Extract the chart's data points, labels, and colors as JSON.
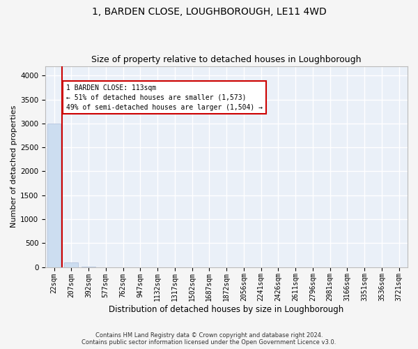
{
  "title": "1, BARDEN CLOSE, LOUGHBOROUGH, LE11 4WD",
  "subtitle": "Size of property relative to detached houses in Loughborough",
  "xlabel": "Distribution of detached houses by size in Loughborough",
  "ylabel": "Number of detached properties",
  "footer_line1": "Contains HM Land Registry data © Crown copyright and database right 2024.",
  "footer_line2": "Contains public sector information licensed under the Open Government Licence v3.0.",
  "bar_labels": [
    "22sqm",
    "207sqm",
    "392sqm",
    "577sqm",
    "762sqm",
    "947sqm",
    "1132sqm",
    "1317sqm",
    "1502sqm",
    "1687sqm",
    "1872sqm",
    "2056sqm",
    "2241sqm",
    "2426sqm",
    "2611sqm",
    "2796sqm",
    "2981sqm",
    "3166sqm",
    "3351sqm",
    "3536sqm",
    "3721sqm"
  ],
  "bar_values": [
    3000,
    100,
    3,
    2,
    1,
    1,
    1,
    0,
    0,
    0,
    0,
    0,
    0,
    0,
    0,
    0,
    0,
    0,
    0,
    0,
    0
  ],
  "bar_color": "#ccddf0",
  "bar_edge_color": "#aabbd8",
  "ylim": [
    0,
    4200
  ],
  "yticks": [
    0,
    500,
    1000,
    1500,
    2000,
    2500,
    3000,
    3500,
    4000
  ],
  "property_line_color": "#cc0000",
  "annotation_text": "1 BARDEN CLOSE: 113sqm\n← 51% of detached houses are smaller (1,573)\n49% of semi-detached houses are larger (1,504) →",
  "annotation_box_color": "#ffffff",
  "annotation_box_edge_color": "#cc0000",
  "background_color": "#eaf0f8",
  "grid_color": "#ffffff",
  "fig_bg_color": "#f5f5f5"
}
